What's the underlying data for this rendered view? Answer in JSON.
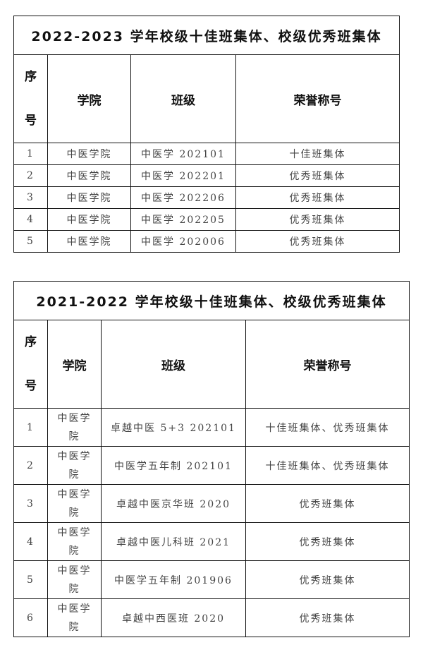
{
  "tables": [
    {
      "title": "2022-2023 学年校级十佳班集体、校级优秀班集体",
      "headers": [
        "序号",
        "学院",
        "班级",
        "荣誉称号"
      ],
      "rows": [
        [
          "1",
          "中医学院",
          "中医学 202101",
          "十佳班集体"
        ],
        [
          "2",
          "中医学院",
          "中医学 202201",
          "优秀班集体"
        ],
        [
          "3",
          "中医学院",
          "中医学 202206",
          "优秀班集体"
        ],
        [
          "4",
          "中医学院",
          "中医学 202205",
          "优秀班集体"
        ],
        [
          "5",
          "中医学院",
          "中医学 202006",
          "优秀班集体"
        ]
      ]
    },
    {
      "title": "2021-2022 学年校级十佳班集体、校级优秀班集体",
      "headers": [
        "序号",
        "学院",
        "班级",
        "荣誉称号"
      ],
      "rows": [
        [
          "1",
          "中医学院",
          "卓越中医 5+3  202101",
          "十佳班集体、优秀班集体"
        ],
        [
          "2",
          "中医学院",
          "中医学五年制 202101",
          "十佳班集体、优秀班集体"
        ],
        [
          "3",
          "中医学院",
          "卓越中医京华班 2020",
          "优秀班集体"
        ],
        [
          "4",
          "中医学院",
          "卓越中医儿科班 2021",
          "优秀班集体"
        ],
        [
          "5",
          "中医学院",
          "中医学五年制 201906",
          "优秀班集体"
        ],
        [
          "6",
          "中医学院",
          "卓越中西医班 2020",
          "优秀班集体"
        ]
      ]
    }
  ]
}
